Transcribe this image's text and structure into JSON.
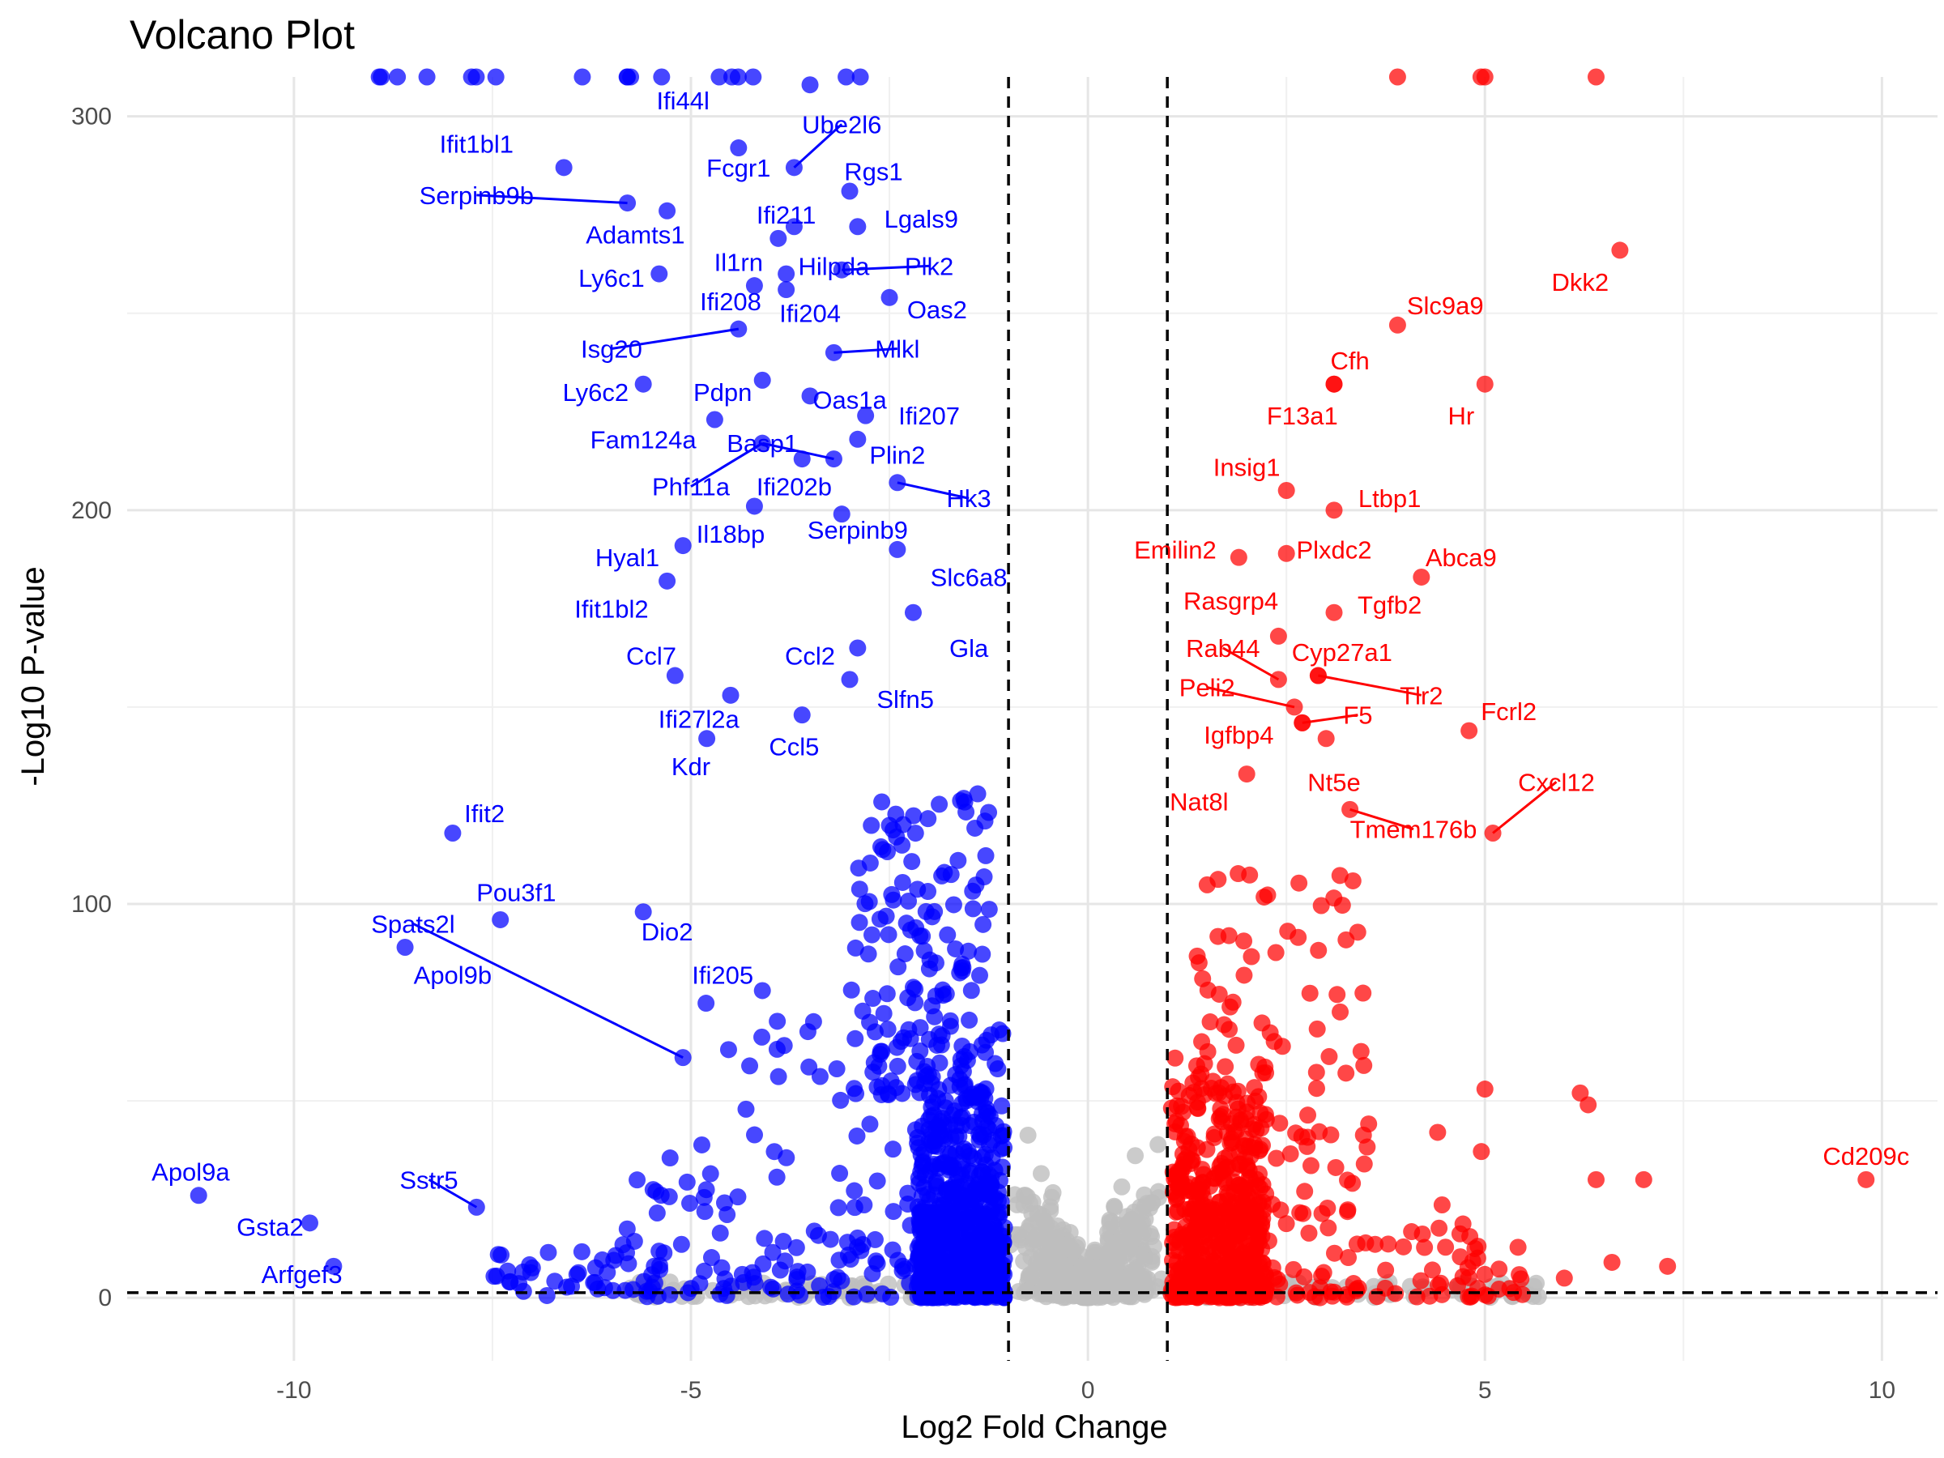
{
  "chart_data": {
    "type": "scatter",
    "title": "Volcano Plot",
    "xlabel": "Log2 Fold Change",
    "ylabel": "-Log10 P-value",
    "xlim": [
      -12.1,
      10.7
    ],
    "ylim": [
      -16,
      310
    ],
    "x_ticks": [
      -10,
      -5,
      0,
      5,
      10
    ],
    "y_ticks": [
      0,
      100,
      200,
      300
    ],
    "grid": true,
    "fc_threshold": 1,
    "p_threshold_line": 1.3,
    "colors": {
      "down": "#0000ff",
      "up": "#ff0000",
      "ns": "#bebebe",
      "threshold_line": "#000000"
    },
    "labeled_genes": [
      {
        "label": "Ifi44l",
        "x": -3.5,
        "y": 308,
        "lx": -5.1,
        "ly": 304,
        "dir": "down"
      },
      {
        "label": "Ube2l6",
        "x": -3.7,
        "y": 287,
        "lx": -3.1,
        "ly": 298,
        "dir": "down",
        "leader": true
      },
      {
        "label": "Ifit1bl1",
        "x": -6.6,
        "y": 287,
        "lx": -7.7,
        "ly": 293,
        "dir": "down"
      },
      {
        "label": "Fcgr1",
        "x": -4.4,
        "y": 292,
        "lx": -4.4,
        "ly": 287,
        "dir": "down"
      },
      {
        "label": "Rgs1",
        "x": -3.0,
        "y": 281,
        "lx": -2.7,
        "ly": 286,
        "dir": "down"
      },
      {
        "label": "Serpinb9b",
        "x": -5.8,
        "y": 278,
        "lx": -7.7,
        "ly": 280,
        "dir": "down",
        "leader": true
      },
      {
        "label": "Ifi211",
        "x": -3.7,
        "y": 272,
        "lx": -3.8,
        "ly": 275,
        "dir": "down"
      },
      {
        "label": "Lgals9",
        "x": -2.9,
        "y": 272,
        "lx": -2.1,
        "ly": 274,
        "dir": "down"
      },
      {
        "label": "Adamts1",
        "x": -5.3,
        "y": 276,
        "lx": -5.7,
        "ly": 270,
        "dir": "down"
      },
      {
        "label": "Il1rn",
        "x": -3.9,
        "y": 269,
        "lx": -4.4,
        "ly": 263,
        "dir": "down"
      },
      {
        "label": "Hilpda",
        "x": -3.8,
        "y": 260,
        "lx": -3.2,
        "ly": 262,
        "dir": "down"
      },
      {
        "label": "Plk2",
        "x": -3.1,
        "y": 261,
        "lx": -2.0,
        "ly": 262,
        "dir": "down",
        "leader": true
      },
      {
        "label": "Ly6c1",
        "x": -5.4,
        "y": 260,
        "lx": -6.0,
        "ly": 259,
        "dir": "down"
      },
      {
        "label": "Ifi208",
        "x": -4.2,
        "y": 257,
        "lx": -4.5,
        "ly": 253,
        "dir": "down"
      },
      {
        "label": "Oas2",
        "x": -2.5,
        "y": 254,
        "lx": -1.9,
        "ly": 251,
        "dir": "down"
      },
      {
        "label": "Ifi204",
        "x": -3.8,
        "y": 256,
        "lx": -3.5,
        "ly": 250,
        "dir": "down"
      },
      {
        "label": "Isg20",
        "x": -4.4,
        "y": 246,
        "lx": -6.0,
        "ly": 241,
        "dir": "down",
        "leader": true
      },
      {
        "label": "Mlkl",
        "x": -3.2,
        "y": 240,
        "lx": -2.4,
        "ly": 241,
        "dir": "down",
        "leader": true
      },
      {
        "label": "Ly6c2",
        "x": -5.6,
        "y": 232,
        "lx": -6.2,
        "ly": 230,
        "dir": "down"
      },
      {
        "label": "Pdpn",
        "x": -4.1,
        "y": 233,
        "lx": -4.6,
        "ly": 230,
        "dir": "down"
      },
      {
        "label": "Oas1a",
        "x": -3.5,
        "y": 229,
        "lx": -3.0,
        "ly": 228,
        "dir": "down"
      },
      {
        "label": "Ifi207",
        "x": -2.8,
        "y": 224,
        "lx": -2.0,
        "ly": 224,
        "dir": "down"
      },
      {
        "label": "Fam124a",
        "x": -4.7,
        "y": 223,
        "lx": -5.6,
        "ly": 218,
        "dir": "down"
      },
      {
        "label": "Basp1",
        "x": -3.2,
        "y": 213,
        "lx": -4.1,
        "ly": 217,
        "dir": "down",
        "leader": true
      },
      {
        "label": "Plin2",
        "x": -2.9,
        "y": 218,
        "lx": -2.4,
        "ly": 214,
        "dir": "down"
      },
      {
        "label": "Phf11a",
        "x": -4.1,
        "y": 217,
        "lx": -5.0,
        "ly": 206,
        "dir": "down",
        "leader": true
      },
      {
        "label": "Ifi202b",
        "x": -3.6,
        "y": 213,
        "lx": -3.7,
        "ly": 206,
        "dir": "down"
      },
      {
        "label": "Hk3",
        "x": -2.4,
        "y": 207,
        "lx": -1.5,
        "ly": 203,
        "dir": "down",
        "leader": true
      },
      {
        "label": "Il18bp",
        "x": -4.2,
        "y": 201,
        "lx": -4.5,
        "ly": 194,
        "dir": "down"
      },
      {
        "label": "Serpinb9",
        "x": -3.1,
        "y": 199,
        "lx": -2.9,
        "ly": 195,
        "dir": "down"
      },
      {
        "label": "Hyal1",
        "x": -5.1,
        "y": 191,
        "lx": -5.8,
        "ly": 188,
        "dir": "down"
      },
      {
        "label": "Slc6a8",
        "x": -2.4,
        "y": 190,
        "lx": -1.5,
        "ly": 183,
        "dir": "down"
      },
      {
        "label": "Ifit1bl2",
        "x": -5.3,
        "y": 182,
        "lx": -6.0,
        "ly": 175,
        "dir": "down"
      },
      {
        "label": "Gla",
        "x": -2.2,
        "y": 174,
        "lx": -1.5,
        "ly": 165,
        "dir": "down"
      },
      {
        "label": "Ccl7",
        "x": -5.2,
        "y": 158,
        "lx": -5.5,
        "ly": 163,
        "dir": "down"
      },
      {
        "label": "Ccl2",
        "x": -2.9,
        "y": 165,
        "lx": -3.5,
        "ly": 163,
        "dir": "down"
      },
      {
        "label": "Slfn5",
        "x": -3.0,
        "y": 157,
        "lx": -2.3,
        "ly": 152,
        "dir": "down"
      },
      {
        "label": "Ifi27l2a",
        "x": -4.5,
        "y": 153,
        "lx": -4.9,
        "ly": 147,
        "dir": "down"
      },
      {
        "label": "Ccl5",
        "x": -3.6,
        "y": 148,
        "lx": -3.7,
        "ly": 140,
        "dir": "down"
      },
      {
        "label": "Kdr",
        "x": -4.8,
        "y": 142,
        "lx": -5.0,
        "ly": 135,
        "dir": "down"
      },
      {
        "label": "Ifit2",
        "x": -8.0,
        "y": 118,
        "lx": -7.6,
        "ly": 123,
        "dir": "down"
      },
      {
        "label": "Pou3f1",
        "x": -7.4,
        "y": 96,
        "lx": -7.2,
        "ly": 103,
        "dir": "down"
      },
      {
        "label": "Spats2l",
        "x": -5.1,
        "y": 61,
        "lx": -8.5,
        "ly": 95,
        "dir": "down",
        "leader": true
      },
      {
        "label": "Apol9b",
        "x": -8.6,
        "y": 89,
        "lx": -8.0,
        "ly": 82,
        "dir": "down"
      },
      {
        "label": "Dio2",
        "x": -5.6,
        "y": 98,
        "lx": -5.3,
        "ly": 93,
        "dir": "down"
      },
      {
        "label": "Ifi205",
        "x": -4.1,
        "y": 78,
        "lx": -4.6,
        "ly": 82,
        "dir": "down"
      },
      {
        "label": "Apol9a",
        "x": -11.2,
        "y": 26,
        "lx": -11.3,
        "ly": 32,
        "dir": "down"
      },
      {
        "label": "Sstr5",
        "x": -7.7,
        "y": 23,
        "lx": -8.3,
        "ly": 30,
        "dir": "down",
        "leader": true
      },
      {
        "label": "Gsta2",
        "x": -9.8,
        "y": 19,
        "lx": -10.3,
        "ly": 18,
        "dir": "down"
      },
      {
        "label": "Arfgef3",
        "x": -9.5,
        "y": 8,
        "lx": -9.9,
        "ly": 6,
        "dir": "down"
      },
      {
        "label": "Dkk2",
        "x": 6.7,
        "y": 266,
        "lx": 6.2,
        "ly": 258,
        "dir": "up"
      },
      {
        "label": "Slc9a9",
        "x": 3.9,
        "y": 247,
        "lx": 4.5,
        "ly": 252,
        "dir": "up"
      },
      {
        "label": "Cfh",
        "x": 3.1,
        "y": 232,
        "lx": 3.3,
        "ly": 238,
        "dir": "up"
      },
      {
        "label": "F13a1",
        "x": 3.1,
        "y": 232,
        "lx": 2.7,
        "ly": 224,
        "dir": "up"
      },
      {
        "label": "Hr",
        "x": 5.0,
        "y": 232,
        "lx": 4.7,
        "ly": 224,
        "dir": "up"
      },
      {
        "label": "Insig1",
        "x": 2.5,
        "y": 205,
        "lx": 2.0,
        "ly": 211,
        "dir": "up"
      },
      {
        "label": "Ltbp1",
        "x": 3.1,
        "y": 200,
        "lx": 3.8,
        "ly": 203,
        "dir": "up"
      },
      {
        "label": "Emilin2",
        "x": 1.9,
        "y": 188,
        "lx": 1.1,
        "ly": 190,
        "dir": "up"
      },
      {
        "label": "Plxdc2",
        "x": 2.5,
        "y": 189,
        "lx": 3.1,
        "ly": 190,
        "dir": "up"
      },
      {
        "label": "Abca9",
        "x": 4.2,
        "y": 183,
        "lx": 4.7,
        "ly": 188,
        "dir": "up"
      },
      {
        "label": "Rasgrp4",
        "x": 2.4,
        "y": 168,
        "lx": 1.8,
        "ly": 177,
        "dir": "up"
      },
      {
        "label": "Tgfb2",
        "x": 3.1,
        "y": 174,
        "lx": 3.8,
        "ly": 176,
        "dir": "up"
      },
      {
        "label": "Rab44",
        "x": 2.4,
        "y": 157,
        "lx": 1.7,
        "ly": 165,
        "dir": "up",
        "leader": true
      },
      {
        "label": "Cyp27a1",
        "x": 2.9,
        "y": 158,
        "lx": 3.2,
        "ly": 164,
        "dir": "up"
      },
      {
        "label": "Peli2",
        "x": 2.6,
        "y": 150,
        "lx": 1.5,
        "ly": 155,
        "dir": "up",
        "leader": true
      },
      {
        "label": "Tlr2",
        "x": 2.9,
        "y": 158,
        "lx": 4.2,
        "ly": 153,
        "dir": "up",
        "leader": true
      },
      {
        "label": "Fcrl2",
        "x": 4.8,
        "y": 144,
        "lx": 5.3,
        "ly": 149,
        "dir": "up"
      },
      {
        "label": "F5",
        "x": 2.7,
        "y": 146,
        "lx": 3.4,
        "ly": 148,
        "dir": "up",
        "leader": true
      },
      {
        "label": "Igfbp4",
        "x": 2.7,
        "y": 146,
        "lx": 1.9,
        "ly": 143,
        "dir": "up"
      },
      {
        "label": "Nt5e",
        "x": 3.0,
        "y": 142,
        "lx": 3.1,
        "ly": 131,
        "dir": "up"
      },
      {
        "label": "Cxcl12",
        "x": 5.1,
        "y": 118,
        "lx": 5.9,
        "ly": 131,
        "dir": "up",
        "leader": true
      },
      {
        "label": "Nat8l",
        "x": 2.0,
        "y": 133,
        "lx": 1.4,
        "ly": 126,
        "dir": "up"
      },
      {
        "label": "Tmem176b",
        "x": 3.3,
        "y": 124,
        "lx": 4.1,
        "ly": 119,
        "dir": "up",
        "leader": true
      },
      {
        "label": "Cd209c",
        "x": 9.8,
        "y": 30,
        "lx": 9.8,
        "ly": 36,
        "dir": "up"
      }
    ]
  }
}
